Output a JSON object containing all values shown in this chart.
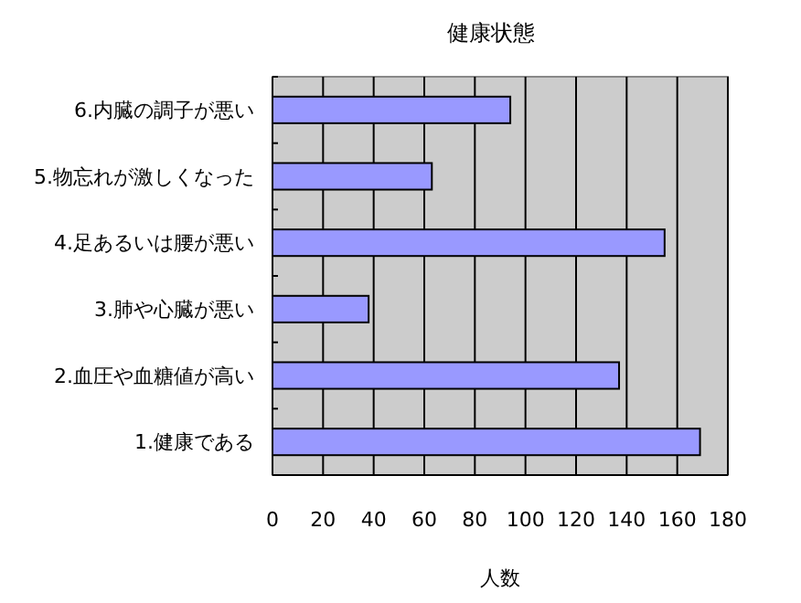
{
  "chart_data": {
    "type": "bar",
    "orientation": "horizontal",
    "title": "健康状態",
    "xlabel": "人数",
    "categories": [
      "6.内臓の調子が悪い",
      "5.物忘れが激しくなった",
      "4.足あるいは腰が悪い",
      "3.肺や心臓が悪い",
      "2.血圧や血糖値が高い",
      "1.健康である"
    ],
    "values": [
      94,
      63,
      155,
      38,
      137,
      169
    ],
    "color": "#9999ff",
    "xlim": [
      0,
      180
    ],
    "xticks": [
      0,
      20,
      40,
      60,
      80,
      100,
      120,
      140,
      160,
      180
    ],
    "grid": "x"
  }
}
